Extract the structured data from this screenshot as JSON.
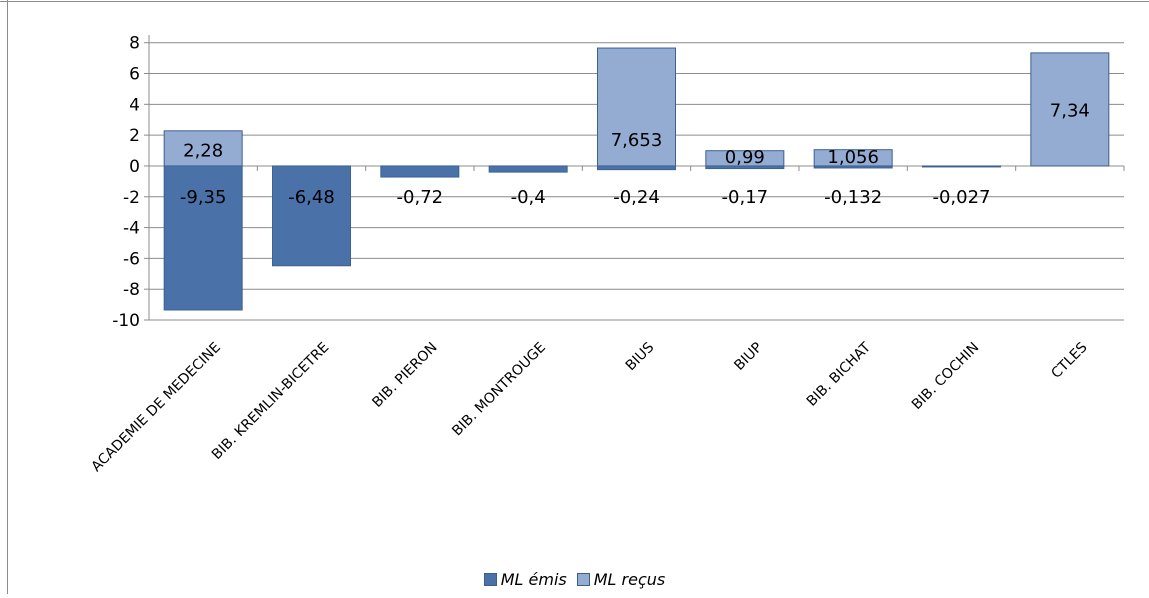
{
  "chart_data": {
    "type": "bar",
    "stacked": true,
    "categories": [
      "ACADEMIE DE MEDECINE",
      "BIB. KREMLIN-BICETRE",
      "BIB. PIERON",
      "BIB. MONTROUGE",
      "BIUS",
      "BIUP",
      "BIB. BICHAT",
      "BIB. COCHIN",
      "CTLES"
    ],
    "series": [
      {
        "name": "ML émis",
        "color": "#4a72a8",
        "values": [
          -9.35,
          -6.48,
          -0.72,
          -0.4,
          -0.24,
          -0.17,
          -0.132,
          -0.027,
          0
        ],
        "labels": [
          "-9,35",
          "-6,48",
          "-0,72",
          "-0,4",
          "-0,24",
          "-0,17",
          "-0,132",
          "-0,027",
          ""
        ]
      },
      {
        "name": "ML reçus",
        "color": "#94abd2",
        "values": [
          2.28,
          0,
          0,
          0,
          7.653,
          0.99,
          1.056,
          0,
          7.34
        ],
        "labels": [
          "2,28",
          "",
          "",
          "",
          "7,653",
          "0,99",
          "1,056",
          "",
          "7,34"
        ]
      }
    ],
    "yticks": [
      8,
      6,
      4,
      2,
      0,
      -2,
      -4,
      -6,
      -8,
      -10
    ],
    "ylim": [
      -10,
      8.5
    ],
    "grid": true,
    "legend_position": "bottom"
  },
  "legend": {
    "emis": "ML émis",
    "recus": "ML reçus"
  }
}
